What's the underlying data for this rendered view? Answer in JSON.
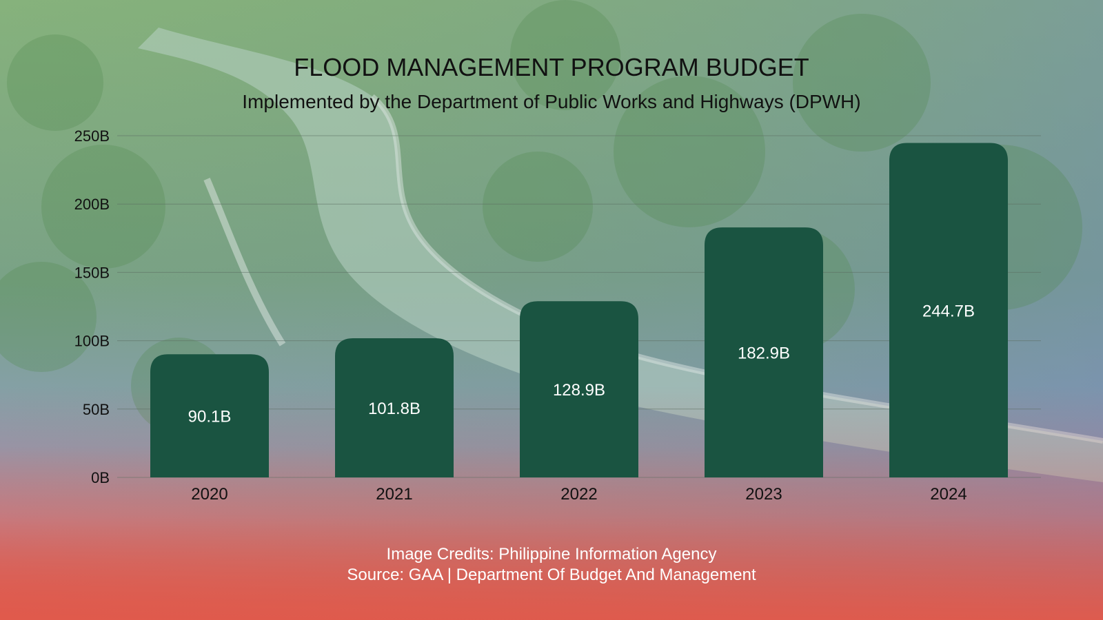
{
  "colors": {
    "bar": "#1a5441",
    "text": "#111111",
    "label": "#ffffff",
    "grid": "#5b6b60",
    "bg_top": "#7fae7a",
    "bg_mid": "#7f9fb8",
    "bg_bottom": "#d9574f"
  },
  "background": {
    "icon": "aerial-river-forest-photo"
  },
  "credits": {
    "line1": "Image Credits: Philippine Information Agency",
    "line2": "Source: GAA | Department Of Budget And Management"
  },
  "chart_data": {
    "type": "bar",
    "title": "FLOOD MANAGEMENT PROGRAM BUDGET",
    "subtitle": "Implemented by the Department of Public Works and Highways (DPWH)",
    "categories": [
      "2020",
      "2021",
      "2022",
      "2023",
      "2024"
    ],
    "values": [
      90.1,
      101.8,
      128.9,
      182.9,
      244.7
    ],
    "value_labels": [
      "90.1B",
      "101.8B",
      "128.9B",
      "182.9B",
      "244.7B"
    ],
    "ylim": [
      0,
      250
    ],
    "yticks": [
      0,
      50,
      100,
      150,
      200,
      250
    ],
    "ytick_labels": [
      "0B",
      "50B",
      "100B",
      "150B",
      "200B",
      "250B"
    ],
    "xlabel": "",
    "ylabel": "",
    "grid": true,
    "legend": "none"
  }
}
